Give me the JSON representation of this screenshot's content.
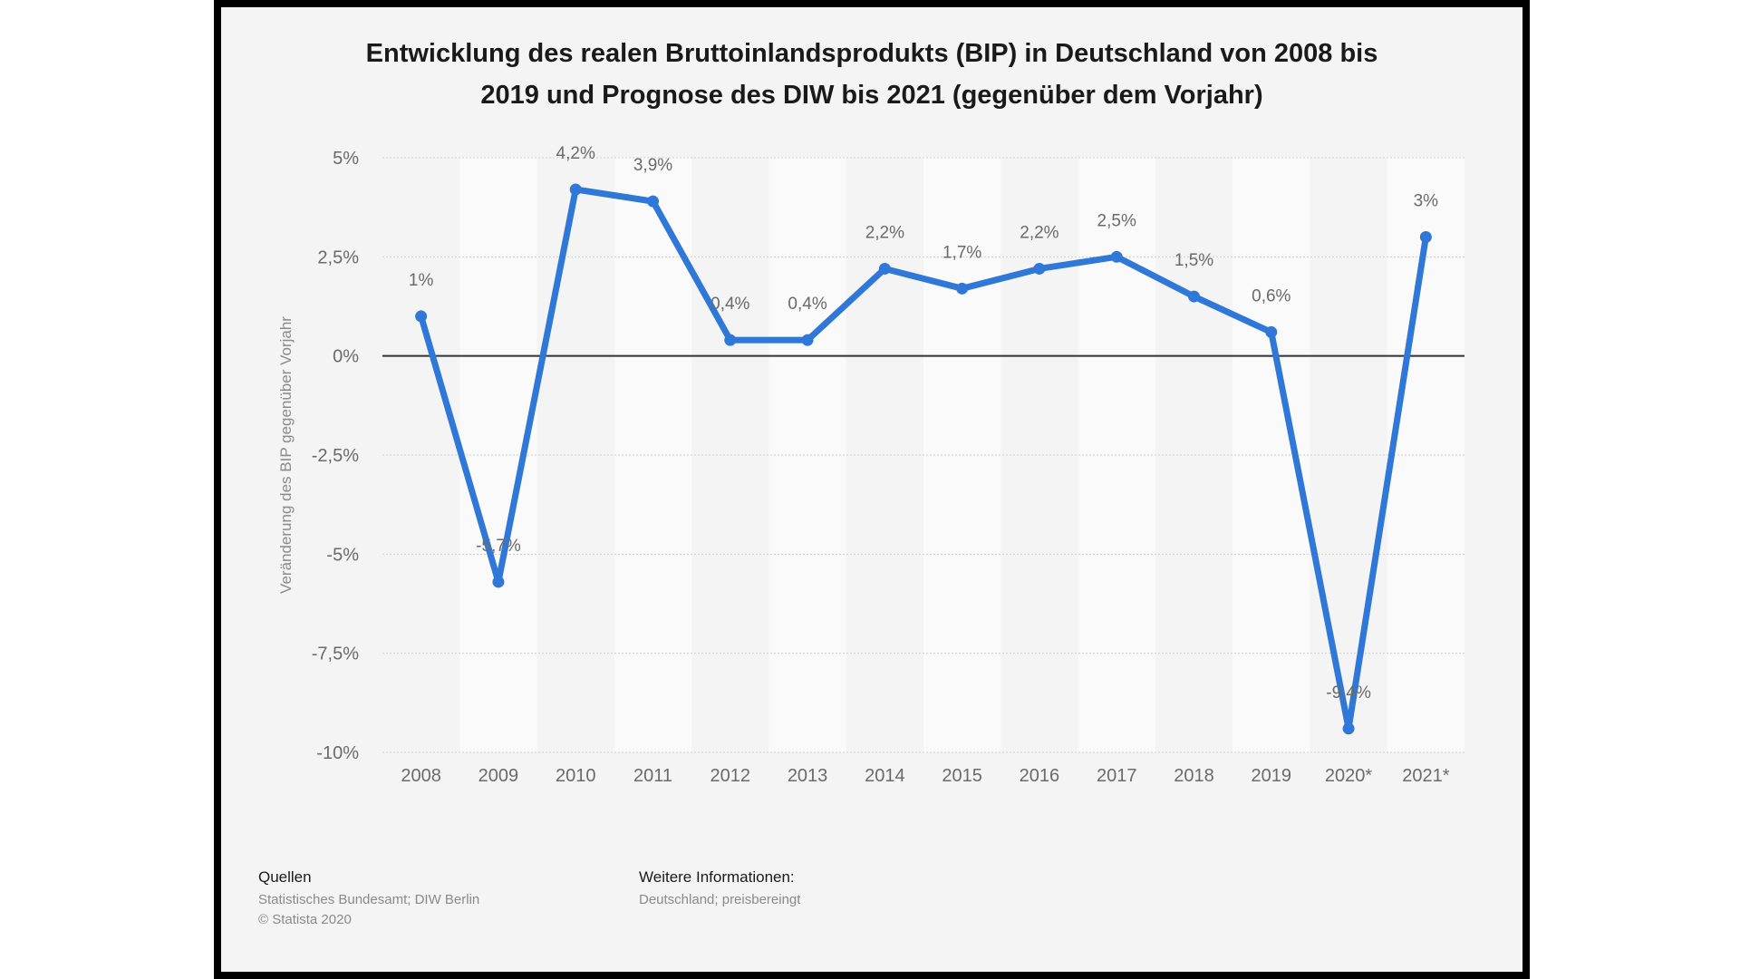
{
  "chart_data": {
    "type": "line",
    "title_line1": "Entwicklung des realen Bruttoinlandsprodukts (BIP) in Deutschland von 2008 bis",
    "title_line2": "2019 und Prognose des DIW bis 2021 (gegenüber dem Vorjahr)",
    "ylabel": "Veränderung des BIP gegenüber Vorjahr",
    "xlabel": "",
    "ylim": [
      -10,
      5
    ],
    "y_ticks": [
      5,
      2.5,
      0,
      -2.5,
      -5,
      -7.5,
      -10
    ],
    "y_tick_labels": [
      "5%",
      "2,5%",
      "0%",
      "-2,5%",
      "-5%",
      "-7,5%",
      "-10%"
    ],
    "categories": [
      "2008",
      "2009",
      "2010",
      "2011",
      "2012",
      "2013",
      "2014",
      "2015",
      "2016",
      "2017",
      "2018",
      "2019",
      "2020*",
      "2021*"
    ],
    "values": [
      1,
      -5.7,
      4.2,
      3.9,
      0.4,
      0.4,
      2.2,
      1.7,
      2.2,
      2.5,
      1.5,
      0.6,
      -9.4,
      3
    ],
    "data_labels": [
      "1%",
      "-5,7%",
      "4,2%",
      "3,9%",
      "0,4%",
      "0,4%",
      "2,2%",
      "1,7%",
      "2,2%",
      "2,5%",
      "1,5%",
      "0,6%",
      "-9,4%",
      "3%"
    ],
    "line_color": "#2f78d8",
    "grid": true
  },
  "footer": {
    "sources_label": "Quellen",
    "sources_line1": "Statistisches Bundesamt; DIW Berlin",
    "sources_line2": "© Statista 2020",
    "info_label": "Weitere Informationen:",
    "info_line1": "Deutschland; preisbereingt"
  }
}
